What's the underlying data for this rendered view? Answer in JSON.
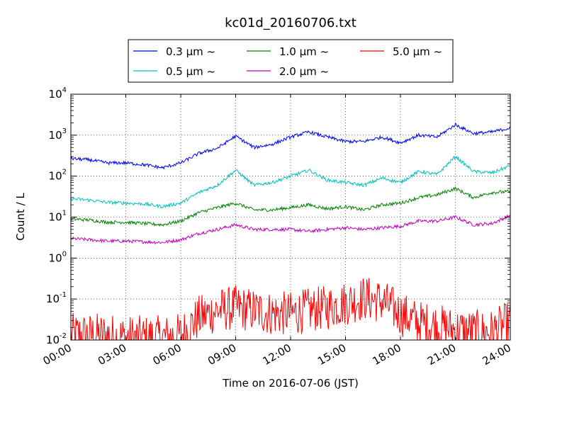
{
  "chart_data": {
    "type": "line",
    "title": "kc01d_20160706.txt",
    "xlabel": "Time on 2016-07-06 (JST)",
    "ylabel": "Count / L",
    "y_scale": "log",
    "ylim": [
      0.01,
      10000
    ],
    "xlim_hours": [
      0,
      24
    ],
    "grid": true,
    "legend_position": "top, outside plot",
    "x_tick_labels": [
      "00:00",
      "03:00",
      "06:00",
      "09:00",
      "12:00",
      "15:00",
      "18:00",
      "21:00",
      "24:00"
    ],
    "y_ticks": [
      {
        "base": "10",
        "exp": "-2"
      },
      {
        "base": "10",
        "exp": "-1"
      },
      {
        "base": "10",
        "exp": "0"
      },
      {
        "base": "10",
        "exp": "1"
      },
      {
        "base": "10",
        "exp": "2"
      },
      {
        "base": "10",
        "exp": "3"
      },
      {
        "base": "10",
        "exp": "4"
      }
    ],
    "x_hours": [
      0,
      1,
      2,
      3,
      4,
      5,
      6,
      7,
      8,
      9,
      10,
      11,
      12,
      13,
      14,
      15,
      16,
      17,
      18,
      19,
      20,
      21,
      22,
      23,
      24
    ],
    "series": [
      {
        "name": "0.3 μm ~",
        "color": "#0000ff",
        "values": [
          270,
          250,
          210,
          210,
          190,
          160,
          210,
          360,
          480,
          950,
          500,
          600,
          900,
          1200,
          900,
          700,
          700,
          900,
          650,
          1000,
          900,
          1800,
          1100,
          1200,
          1500
        ]
      },
      {
        "name": "0.5 μm ~",
        "color": "#00bfbf",
        "values": [
          28,
          26,
          23,
          22,
          21,
          18,
          22,
          40,
          60,
          140,
          60,
          70,
          100,
          140,
          80,
          70,
          60,
          90,
          70,
          130,
          110,
          300,
          130,
          120,
          180
        ]
      },
      {
        "name": "1.0 μm ~",
        "color": "#008000",
        "values": [
          9,
          8.5,
          7.5,
          7.5,
          7,
          6.5,
          8,
          13,
          17,
          22,
          15,
          15,
          17,
          20,
          16,
          18,
          15,
          20,
          22,
          30,
          35,
          50,
          30,
          40,
          42
        ]
      },
      {
        "name": "2.0 μm ~",
        "color": "#bf00bf",
        "values": [
          3,
          2.8,
          2.6,
          2.6,
          2.5,
          2.4,
          2.8,
          4,
          5,
          6.5,
          5,
          5,
          5,
          4.5,
          5,
          5.5,
          5,
          5.5,
          6,
          8,
          8,
          10,
          6.5,
          7,
          11
        ]
      },
      {
        "name": "5.0 μm ~",
        "color": "#ff0000",
        "values": [
          0.015,
          0.015,
          0.015,
          0.013,
          0.013,
          0.013,
          0.015,
          0.04,
          0.06,
          0.07,
          0.06,
          0.05,
          0.05,
          0.06,
          0.07,
          0.09,
          0.12,
          0.1,
          0.05,
          0.03,
          0.025,
          0.02,
          0.018,
          0.018,
          0.03
        ]
      }
    ]
  }
}
